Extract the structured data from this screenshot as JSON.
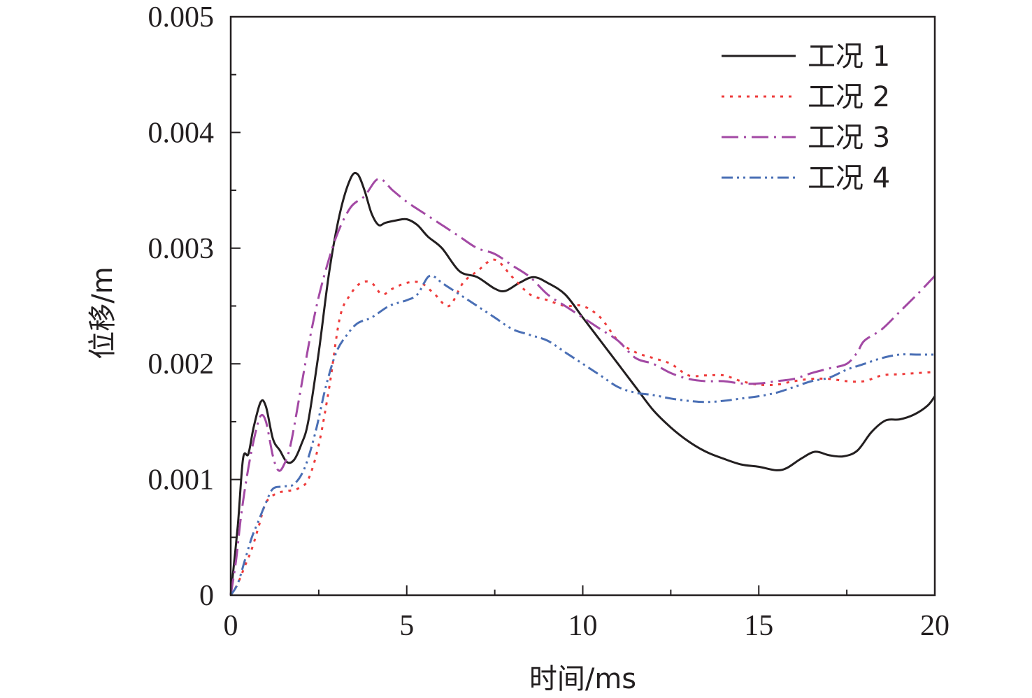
{
  "chart_data": {
    "type": "line",
    "xlabel": "时间/ms",
    "ylabel": "位移/m",
    "xlim": [
      0,
      20
    ],
    "ylim": [
      0,
      0.005
    ],
    "xticks": [
      0,
      5,
      10,
      15,
      20
    ],
    "xtick_labels": [
      "0",
      "5",
      "10",
      "15",
      "20"
    ],
    "yticks": [
      0,
      0.001,
      0.002,
      0.003,
      0.004,
      0.005
    ],
    "ytick_labels": [
      "0",
      "0.001",
      "0.002",
      "0.003",
      "0.004",
      "0.005"
    ],
    "grid": false,
    "legend_position": "top-right",
    "series": [
      {
        "name": "工况 1",
        "color": "#231f20",
        "dash": "solid",
        "x": [
          0,
          0.2,
          0.35,
          0.5,
          0.65,
          0.85,
          1.0,
          1.2,
          1.4,
          1.6,
          1.8,
          2.0,
          2.2,
          2.5,
          2.8,
          3.1,
          3.4,
          3.6,
          3.8,
          4.0,
          4.2,
          4.4,
          4.7,
          5.0,
          5.3,
          5.6,
          6.0,
          6.5,
          7.0,
          7.5,
          7.8,
          8.2,
          8.6,
          9.0,
          9.5,
          10.0,
          10.5,
          11.0,
          11.5,
          12.0,
          12.5,
          13.0,
          13.5,
          14.0,
          14.5,
          15.0,
          15.5,
          15.8,
          16.2,
          16.6,
          17.0,
          17.4,
          17.8,
          18.2,
          18.6,
          19.0,
          19.4,
          19.8,
          20.0
        ],
        "y": [
          0,
          0.0006,
          0.00118,
          0.00122,
          0.00145,
          0.00167,
          0.00163,
          0.00135,
          0.00125,
          0.00115,
          0.00117,
          0.0013,
          0.0015,
          0.0021,
          0.0028,
          0.0033,
          0.0036,
          0.00364,
          0.0035,
          0.0033,
          0.0032,
          0.00322,
          0.00324,
          0.00325,
          0.0032,
          0.0031,
          0.003,
          0.0028,
          0.00275,
          0.00265,
          0.00263,
          0.0027,
          0.00275,
          0.0027,
          0.0026,
          0.0024,
          0.0022,
          0.002,
          0.0018,
          0.0016,
          0.00145,
          0.00133,
          0.00124,
          0.00118,
          0.00113,
          0.00111,
          0.00108,
          0.0011,
          0.00118,
          0.00124,
          0.00121,
          0.0012,
          0.00125,
          0.00141,
          0.00151,
          0.00152,
          0.00156,
          0.00164,
          0.00172
        ]
      },
      {
        "name": "工况 2",
        "color": "#ee3b3b",
        "dash": "dotted",
        "x": [
          0,
          0.2,
          0.4,
          0.6,
          0.8,
          1.0,
          1.3,
          1.6,
          1.9,
          2.2,
          2.5,
          2.8,
          3.1,
          3.4,
          3.7,
          4.0,
          4.3,
          4.6,
          5.0,
          5.4,
          5.8,
          6.2,
          6.6,
          7.0,
          7.5,
          8.0,
          8.5,
          9.0,
          9.5,
          10.0,
          10.5,
          11.0,
          11.5,
          12.0,
          12.5,
          13.0,
          13.5,
          14.0,
          14.5,
          15.0,
          15.5,
          16.0,
          16.5,
          17.0,
          17.5,
          18.0,
          18.5,
          19.0,
          19.5,
          20.0
        ],
        "y": [
          0,
          0.0001,
          0.00025,
          0.0004,
          0.0006,
          0.0008,
          0.00088,
          0.0009,
          0.00092,
          0.001,
          0.0013,
          0.0018,
          0.0024,
          0.0026,
          0.0027,
          0.0027,
          0.0026,
          0.00265,
          0.0027,
          0.0027,
          0.0026,
          0.0025,
          0.0027,
          0.0028,
          0.0029,
          0.00275,
          0.0026,
          0.00255,
          0.0025,
          0.0025,
          0.0024,
          0.0022,
          0.0021,
          0.00205,
          0.002,
          0.0019,
          0.0019,
          0.0019,
          0.00185,
          0.00182,
          0.00182,
          0.00185,
          0.00187,
          0.00187,
          0.00185,
          0.00185,
          0.0019,
          0.00191,
          0.00192,
          0.00193
        ]
      },
      {
        "name": "工况 3",
        "color": "#a349a4",
        "dash": "dashdot",
        "x": [
          0,
          0.15,
          0.3,
          0.5,
          0.7,
          0.85,
          1.0,
          1.2,
          1.35,
          1.5,
          1.7,
          2.0,
          2.3,
          2.6,
          3.0,
          3.4,
          3.8,
          4.2,
          4.6,
          5.0,
          5.5,
          6.0,
          6.5,
          7.0,
          7.5,
          8.0,
          8.5,
          9.0,
          9.5,
          10.0,
          10.5,
          11.0,
          11.5,
          12.0,
          12.5,
          13.0,
          13.5,
          14.0,
          14.5,
          15.0,
          15.5,
          16.0,
          16.5,
          17.0,
          17.5,
          17.8,
          18.0,
          18.5,
          19.0,
          19.5,
          20.0
        ],
        "y": [
          0,
          0.0003,
          0.0007,
          0.0011,
          0.0014,
          0.00155,
          0.0015,
          0.0012,
          0.00108,
          0.00112,
          0.0013,
          0.0018,
          0.0023,
          0.0027,
          0.0031,
          0.00335,
          0.00345,
          0.0036,
          0.0035,
          0.0034,
          0.0033,
          0.0032,
          0.0031,
          0.003,
          0.00295,
          0.00285,
          0.00275,
          0.0026,
          0.0025,
          0.0024,
          0.0023,
          0.0022,
          0.00205,
          0.002,
          0.00192,
          0.00187,
          0.00185,
          0.00185,
          0.00183,
          0.00183,
          0.00185,
          0.00187,
          0.00192,
          0.00196,
          0.002,
          0.0021,
          0.0022,
          0.0023,
          0.00245,
          0.0026,
          0.00276
        ]
      },
      {
        "name": "工况 4",
        "color": "#4a6fb5",
        "dash": "dashdotdot",
        "x": [
          0,
          0.2,
          0.4,
          0.6,
          0.8,
          1.0,
          1.2,
          1.5,
          1.8,
          2.1,
          2.4,
          2.7,
          3.0,
          3.3,
          3.6,
          4.0,
          4.5,
          5.0,
          5.3,
          5.6,
          5.8,
          6.0,
          6.5,
          7.0,
          7.5,
          8.0,
          8.5,
          9.0,
          9.5,
          10.0,
          10.5,
          11.0,
          11.5,
          12.0,
          12.5,
          13.0,
          13.5,
          14.0,
          14.5,
          15.0,
          15.5,
          16.0,
          16.5,
          17.0,
          17.5,
          18.0,
          18.5,
          19.0,
          19.5,
          20.0
        ],
        "y": [
          0,
          0.0001,
          0.0003,
          0.0005,
          0.00065,
          0.0008,
          0.00092,
          0.00094,
          0.00096,
          0.0011,
          0.0014,
          0.0018,
          0.0021,
          0.00225,
          0.00235,
          0.0024,
          0.0025,
          0.00255,
          0.0026,
          0.00275,
          0.00275,
          0.0027,
          0.0026,
          0.0025,
          0.0024,
          0.0023,
          0.00225,
          0.0022,
          0.0021,
          0.002,
          0.0019,
          0.0018,
          0.00175,
          0.00173,
          0.0017,
          0.00168,
          0.00167,
          0.00168,
          0.0017,
          0.00172,
          0.00175,
          0.0018,
          0.00185,
          0.00188,
          0.00195,
          0.002,
          0.00205,
          0.00208,
          0.00208,
          0.00208
        ]
      }
    ]
  }
}
